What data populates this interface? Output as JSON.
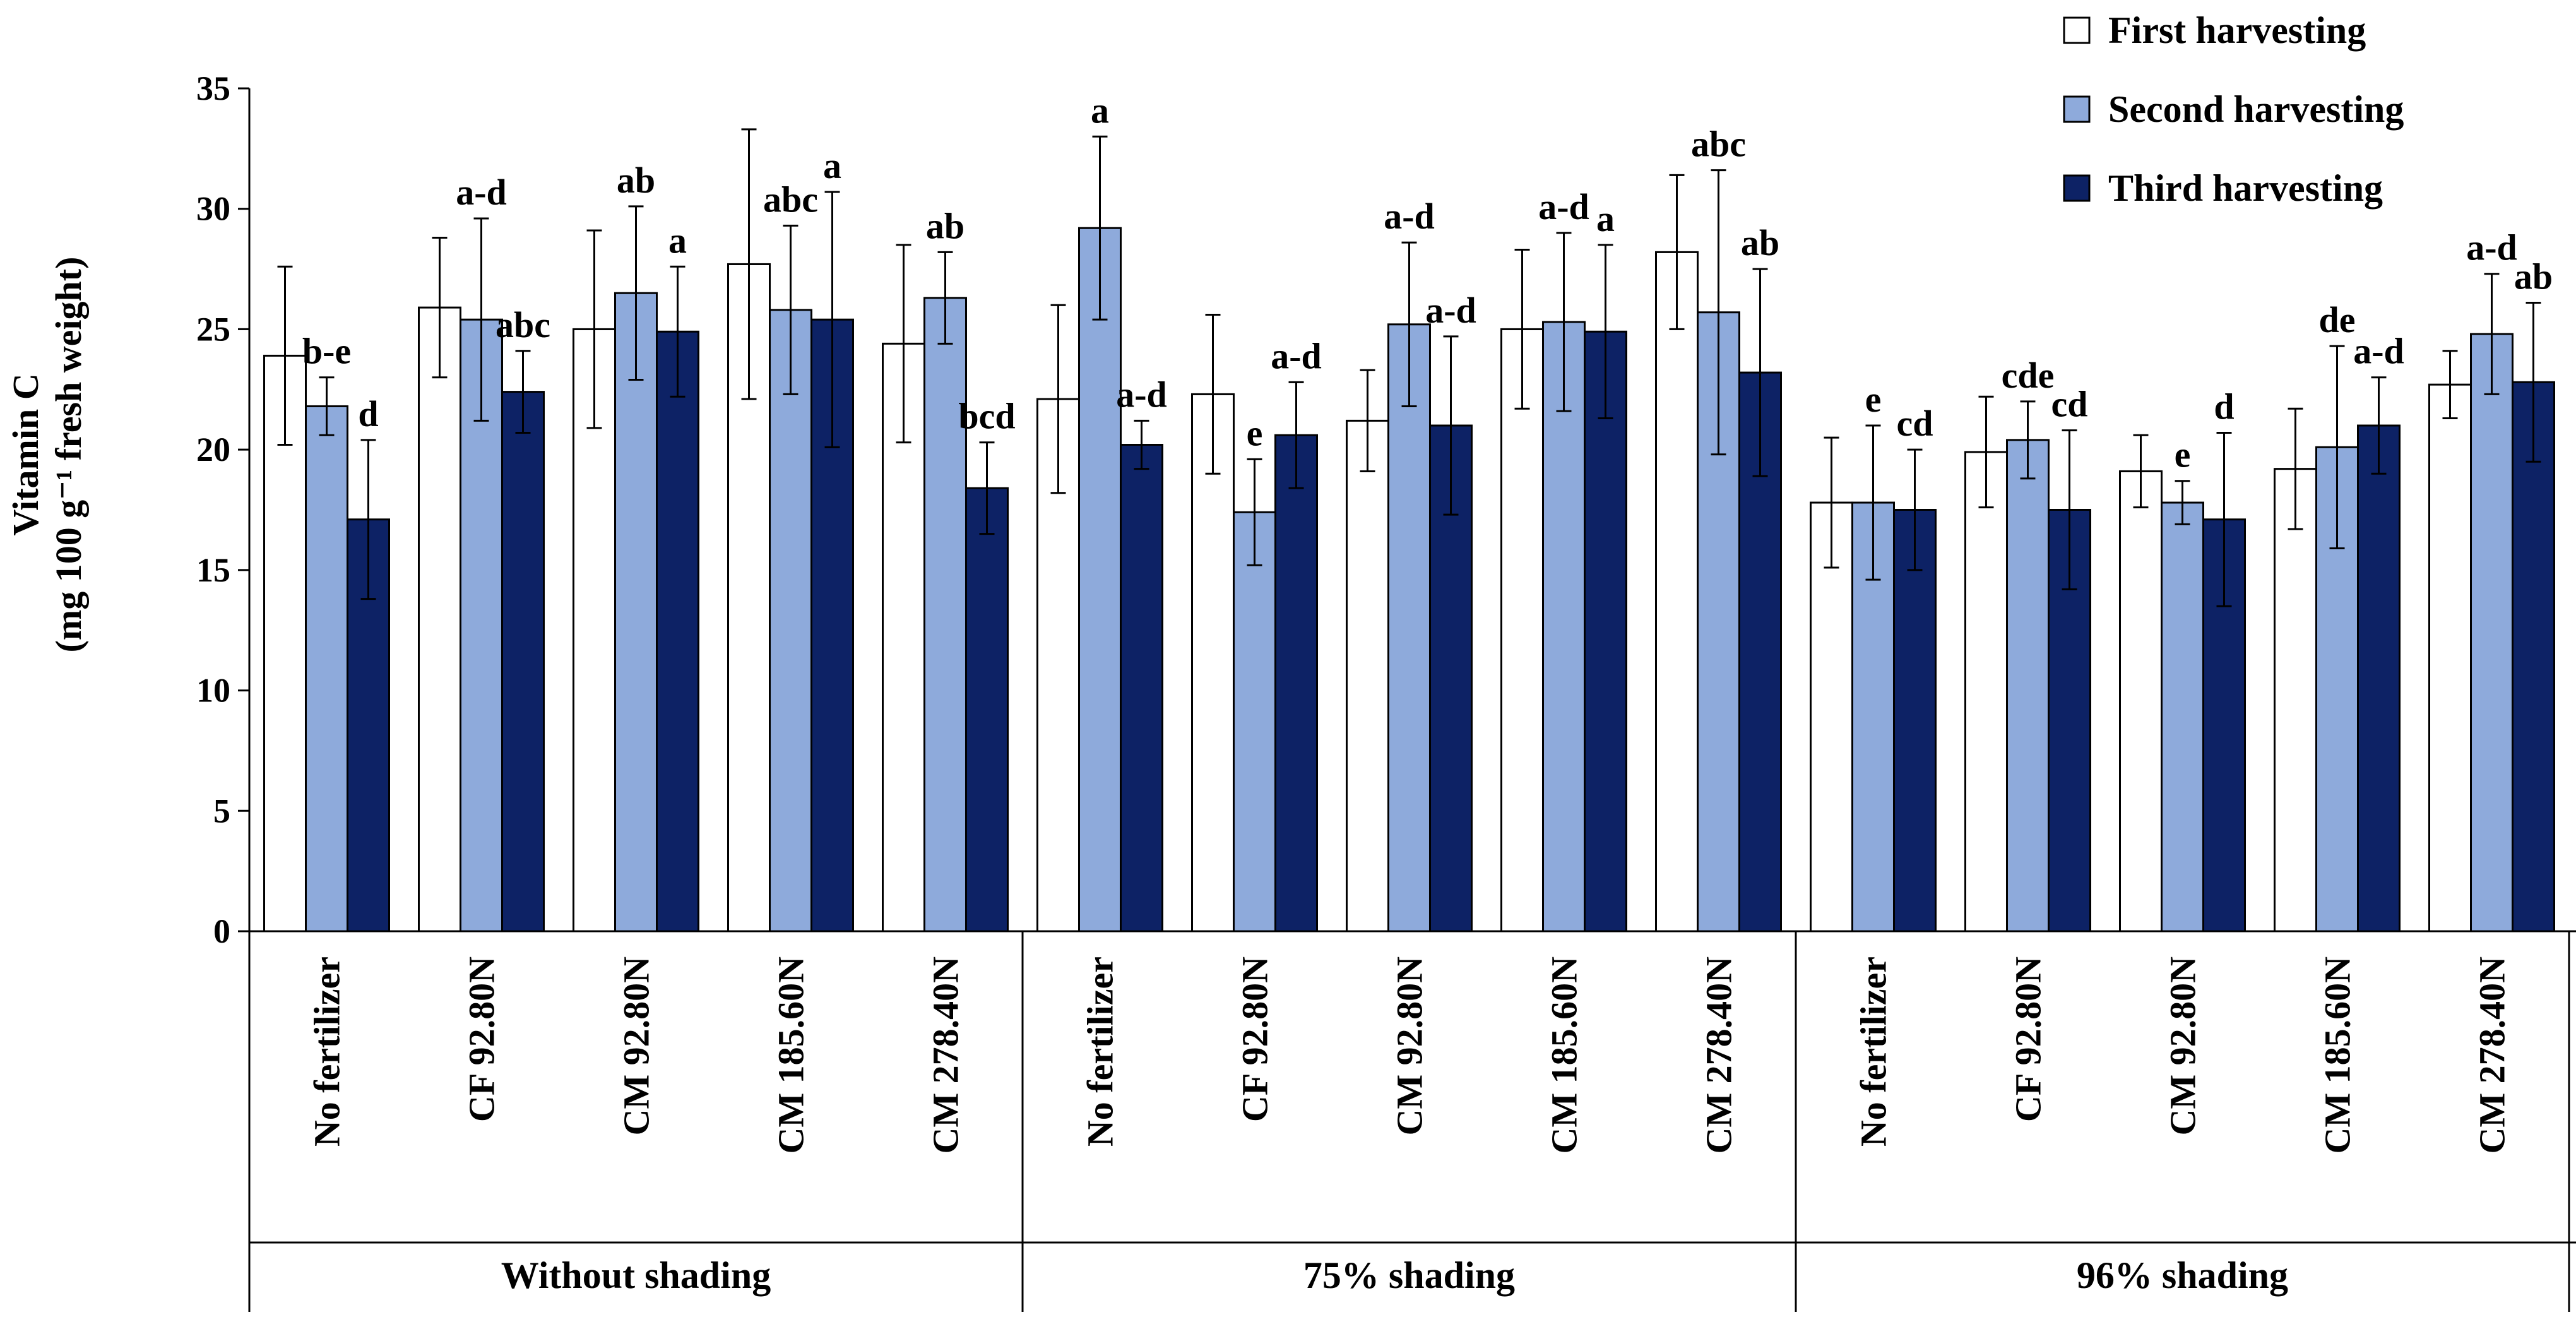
{
  "chart_data": {
    "type": "bar",
    "ylabel_line1": "Vitamin C",
    "ylabel_line2": "(mg 100 g⁻¹ fresh weight)",
    "ylim": [
      0,
      35
    ],
    "yticks": [
      0,
      5,
      10,
      15,
      20,
      25,
      30,
      35
    ],
    "colors": {
      "first": "#ffffff",
      "second": "#8eaadb",
      "third": "#0d2265",
      "stroke": "#000000"
    },
    "legend": [
      "First harvesting",
      "Second harvesting",
      "Third harvesting"
    ],
    "groups": [
      {
        "name": "Without shading",
        "categories": [
          {
            "name": "No fertilizer",
            "values": [
              23.9,
              21.8,
              17.1
            ],
            "errors": [
              3.7,
              1.2,
              3.3
            ],
            "labels": [
              "",
              "b-e",
              "d"
            ]
          },
          {
            "name": "CF 92.80N",
            "values": [
              25.9,
              25.4,
              22.4
            ],
            "errors": [
              2.9,
              4.2,
              1.7
            ],
            "labels": [
              "",
              "a-d",
              "abc"
            ]
          },
          {
            "name": "CM 92.80N",
            "values": [
              25.0,
              26.5,
              24.9
            ],
            "errors": [
              4.1,
              3.6,
              2.7
            ],
            "labels": [
              "",
              "ab",
              "a"
            ]
          },
          {
            "name": "CM 185.60N",
            "values": [
              27.7,
              25.8,
              25.4
            ],
            "errors": [
              5.6,
              3.5,
              5.3
            ],
            "labels": [
              "",
              "abc",
              "a"
            ]
          },
          {
            "name": "CM 278.40N",
            "values": [
              24.4,
              26.3,
              18.4
            ],
            "errors": [
              4.1,
              1.9,
              1.9
            ],
            "labels": [
              "",
              "ab",
              "bcd"
            ]
          }
        ]
      },
      {
        "name": "75% shading",
        "categories": [
          {
            "name": "No fertilizer",
            "values": [
              22.1,
              29.2,
              20.2
            ],
            "errors": [
              3.9,
              3.8,
              1.0
            ],
            "labels": [
              "",
              "a",
              "a-d"
            ]
          },
          {
            "name": "CF 92.80N",
            "values": [
              22.3,
              17.4,
              20.6
            ],
            "errors": [
              3.3,
              2.2,
              2.2
            ],
            "labels": [
              "",
              "e",
              "a-d"
            ]
          },
          {
            "name": "CM 92.80N",
            "values": [
              21.2,
              25.2,
              21.0
            ],
            "errors": [
              2.1,
              3.4,
              3.7
            ],
            "labels": [
              "",
              "a-d",
              "a-d"
            ]
          },
          {
            "name": "CM 185.60N",
            "values": [
              25.0,
              25.3,
              24.9
            ],
            "errors": [
              3.3,
              3.7,
              3.6
            ],
            "labels": [
              "",
              "a-d",
              "a"
            ]
          },
          {
            "name": "CM 278.40N",
            "values": [
              28.2,
              25.7,
              23.2
            ],
            "errors": [
              3.2,
              5.9,
              4.3
            ],
            "labels": [
              "",
              "abc",
              "ab"
            ]
          }
        ]
      },
      {
        "name": "96% shading",
        "categories": [
          {
            "name": "No fertilizer",
            "values": [
              17.8,
              17.8,
              17.5
            ],
            "errors": [
              2.7,
              3.2,
              2.5
            ],
            "labels": [
              "",
              "e",
              "cd"
            ]
          },
          {
            "name": "CF 92.80N",
            "values": [
              19.9,
              20.4,
              17.5
            ],
            "errors": [
              2.3,
              1.6,
              3.3
            ],
            "labels": [
              "",
              "cde",
              "cd"
            ]
          },
          {
            "name": "CM 92.80N",
            "values": [
              19.1,
              17.8,
              17.1
            ],
            "errors": [
              1.5,
              0.9,
              3.6
            ],
            "labels": [
              "",
              "e",
              "d"
            ]
          },
          {
            "name": "CM 185.60N",
            "values": [
              19.2,
              20.1,
              21.0
            ],
            "errors": [
              2.5,
              4.2,
              2.0
            ],
            "labels": [
              "",
              "de",
              "a-d"
            ]
          },
          {
            "name": "CM 278.40N",
            "values": [
              22.7,
              24.8,
              22.8
            ],
            "errors": [
              1.4,
              2.5,
              3.3
            ],
            "labels": [
              "",
              "a-d",
              "ab"
            ]
          }
        ]
      }
    ]
  }
}
